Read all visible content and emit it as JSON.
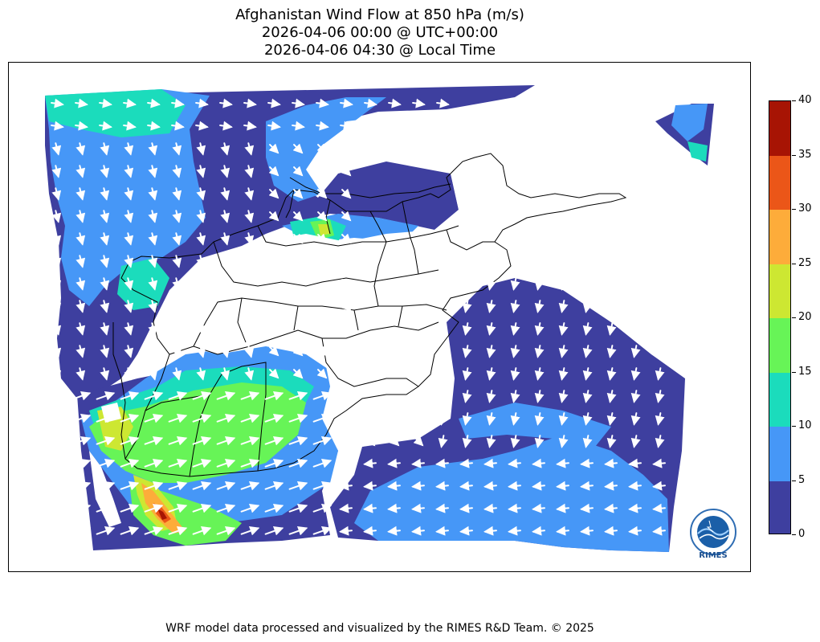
{
  "title": {
    "line1": "Afghanistan Wind Flow at 850 hPa (m/s)",
    "line2": "2026-04-06 00:00 @ UTC+00:00",
    "line3": "2026-04-06 04:30 @ Local Time"
  },
  "colorbar": {
    "min": 0,
    "max": 40,
    "ticks": [
      "0",
      "5",
      "10",
      "15",
      "20",
      "25",
      "30",
      "35",
      "40"
    ],
    "colors": [
      "#3e3f9f",
      "#4697f7",
      "#1bdcbc",
      "#67f457",
      "#cde732",
      "#fdac3a",
      "#eb5618",
      "#a71404"
    ]
  },
  "logo": {
    "text": "RIMES"
  },
  "footer": "WRF model data processed and visualized by the RIMES R&D Team. © 2025"
}
